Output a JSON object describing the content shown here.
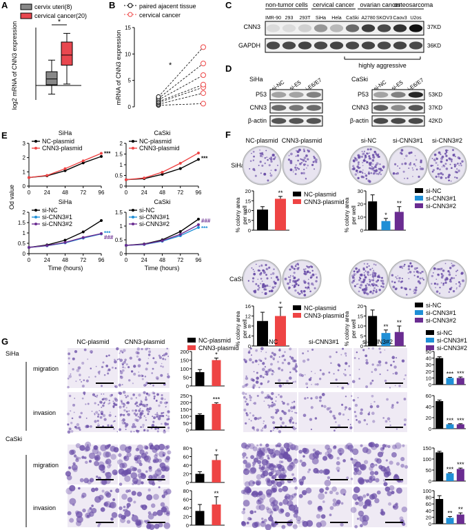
{
  "panels": {
    "A": {
      "letter": "A",
      "ylabel": "log2 mRNA of CNN3 expression",
      "legend": [
        "cervix uteri(8)",
        "cervical cancer(20)"
      ],
      "significance": "*",
      "colors": [
        "#888888",
        "#e8474f"
      ]
    },
    "B": {
      "letter": "B",
      "ylabel": "mRNA of CNN3 expression",
      "legend": [
        "paired ajacent tissue",
        "cervical cancer"
      ],
      "significance": "*",
      "yticks": [
        "0",
        "5",
        "10",
        "15"
      ]
    },
    "C": {
      "letter": "C",
      "groups": [
        "non-tumor cells",
        "cervical cancer",
        "ovarian cancer",
        "osteosarcoma"
      ],
      "lanes": [
        "IMR-90",
        "293",
        "293T",
        "SiHa",
        "Hela",
        "CaSki",
        "A2780",
        "SKOV3",
        "Caov3",
        "U2os"
      ],
      "rows": [
        "CNN3",
        "GAPDH"
      ],
      "sizes": [
        "37KD",
        "36KD"
      ],
      "note": "highly aggressive"
    },
    "D": {
      "letter": "D",
      "cells": [
        "SiHa",
        "CaSki"
      ],
      "lanes": [
        "si-NC",
        "si-E5",
        "si-E6/E7"
      ],
      "rows": [
        "P53",
        "CNN3",
        "β-actin"
      ],
      "sizes": [
        "53KD",
        "37KD",
        "42KD"
      ]
    },
    "E": {
      "letter": "E",
      "ylabel": "Od value",
      "xlabel": "Time (hours)",
      "titles": [
        "SiHa",
        "CaSki",
        "SiHa",
        "CaSki"
      ],
      "xticks": [
        "0",
        "24",
        "48",
        "72",
        "96"
      ],
      "top_legend": [
        "NC-plasmid",
        "CNN3-plasmid"
      ],
      "bottom_legend": [
        "si-NC",
        "si-CNN3#1",
        "si-CNN3#2"
      ],
      "sig_top": "***",
      "sig_bottom_a": "***",
      "sig_bottom_b": "###"
    },
    "F": {
      "letter": "F",
      "titles_left": [
        "NC-plasmid",
        "CNN3-plasmid"
      ],
      "titles_right": [
        "si-NC",
        "si-CNN3#1",
        "si-CNN3#2"
      ],
      "cells": [
        "SiHa",
        "CaSki"
      ],
      "ylabel": "% colony area per well",
      "legend_left": [
        "NC-plasmid",
        "CNN3-plasmid"
      ],
      "legend_right": [
        "si-NC",
        "si-CNN3#1",
        "si-CNN3#2"
      ]
    },
    "G": {
      "letter": "G",
      "cells": [
        "SiHa",
        "CaSki"
      ],
      "assays": [
        "migration",
        "invasion"
      ],
      "titles_left": [
        "NC-plasmid",
        "CNN3-plasmid"
      ],
      "titles_right": [
        "si-NC",
        "si-CNN3#1",
        "si-CNN3#2"
      ],
      "legend_left": [
        "NC-plasmid",
        "CNN3-plasmid"
      ],
      "legend_right": [
        "si-NC",
        "si-CNN3#1",
        "si-CNN3#2"
      ]
    }
  },
  "colors": {
    "black": "#000000",
    "red": "#ee4444",
    "blue": "#1f8fd6",
    "purple": "#6a2c91",
    "grey": "#888888",
    "stain": "#6b4fa8"
  },
  "chart_data": [
    {
      "id": "A",
      "type": "box",
      "categories": [
        "cervix uteri(8)",
        "cervical cancer(20)"
      ],
      "boxes": [
        {
          "min": -0.6,
          "q1": 0.05,
          "median": 0.45,
          "q3": 0.95,
          "max": 1.75
        },
        {
          "min": 0.1,
          "q1": 1.4,
          "median": 2.1,
          "q3": 3.0,
          "max": 3.6
        }
      ],
      "ylim": [
        -1,
        4
      ]
    },
    {
      "id": "B",
      "type": "paired-scatter",
      "series": [
        {
          "name": "paired ajacent tissue",
          "values": [
            0.3,
            0.5,
            0.8,
            1.0,
            1.3,
            1.6,
            1.9
          ]
        },
        {
          "name": "cervical cancer",
          "values": [
            0.6,
            2.6,
            3.7,
            4.2,
            6.0,
            8.2,
            11.3
          ]
        }
      ],
      "ylim": [
        0,
        15
      ]
    },
    {
      "id": "E-SiHa-top",
      "type": "line",
      "x": [
        0,
        24,
        48,
        72,
        96
      ],
      "ylim": [
        0,
        3
      ],
      "series": [
        {
          "name": "NC-plasmid",
          "values": [
            0.6,
            0.72,
            1.08,
            1.63,
            2.08
          ]
        },
        {
          "name": "CNN3-plasmid",
          "values": [
            0.6,
            0.75,
            1.22,
            1.77,
            2.3
          ]
        }
      ]
    },
    {
      "id": "E-CaSki-top",
      "type": "line",
      "x": [
        0,
        24,
        48,
        72,
        96
      ],
      "ylim": [
        0,
        2
      ],
      "series": [
        {
          "name": "NC-plasmid",
          "values": [
            0.3,
            0.35,
            0.55,
            0.82,
            1.25
          ]
        },
        {
          "name": "CNN3-plasmid",
          "values": [
            0.3,
            0.38,
            0.65,
            1.07,
            1.55
          ]
        }
      ]
    },
    {
      "id": "E-SiHa-bottom",
      "type": "line",
      "x": [
        0,
        24,
        48,
        72,
        96
      ],
      "ylim": [
        0,
        2
      ],
      "series": [
        {
          "name": "si-NC",
          "values": [
            0.3,
            0.42,
            0.65,
            1.05,
            1.6
          ]
        },
        {
          "name": "si-CNN3#1",
          "values": [
            0.3,
            0.38,
            0.52,
            0.75,
            0.95
          ]
        },
        {
          "name": "si-CNN3#2",
          "values": [
            0.3,
            0.39,
            0.54,
            0.78,
            0.97
          ]
        }
      ]
    },
    {
      "id": "E-CaSki-bottom",
      "type": "line",
      "x": [
        0,
        24,
        48,
        72,
        96
      ],
      "ylim": [
        0,
        1.5
      ],
      "series": [
        {
          "name": "si-NC",
          "values": [
            0.3,
            0.35,
            0.5,
            0.8,
            1.25
          ]
        },
        {
          "name": "si-CNN3#1",
          "values": [
            0.3,
            0.33,
            0.45,
            0.65,
            0.95
          ]
        },
        {
          "name": "si-CNN3#2",
          "values": [
            0.3,
            0.34,
            0.47,
            0.7,
            1.05
          ]
        }
      ]
    },
    {
      "id": "F-SiHa-L",
      "type": "bar",
      "categories": [
        "NC-plasmid",
        "CNN3-plasmid"
      ],
      "values": [
        10.5,
        16
      ],
      "errors": [
        1.5,
        1.2
      ],
      "sig": [
        "",
        "**"
      ],
      "ylim": [
        0,
        20
      ]
    },
    {
      "id": "F-SiHa-R",
      "type": "bar",
      "categories": [
        "si-NC",
        "si-CNN3#1",
        "si-CNN3#2"
      ],
      "values": [
        22,
        7,
        14
      ],
      "errors": [
        5,
        2,
        4
      ],
      "sig": [
        "",
        "*",
        "**"
      ],
      "ylim": [
        0,
        30
      ]
    },
    {
      "id": "F-CaSki-L",
      "type": "bar",
      "categories": [
        "NC-plasmid",
        "CNN3-plasmid"
      ],
      "values": [
        10,
        12
      ],
      "errors": [
        3.5,
        3.5
      ],
      "sig": [
        "",
        "*"
      ],
      "ylim": [
        0,
        16
      ]
    },
    {
      "id": "F-CaSki-R",
      "type": "bar",
      "categories": [
        "si-NC",
        "si-CNN3#1",
        "si-CNN3#2"
      ],
      "values": [
        15,
        6.5,
        7
      ],
      "errors": [
        3,
        1.5,
        3
      ],
      "sig": [
        "",
        "**",
        "**"
      ],
      "ylim": [
        0,
        20
      ]
    },
    {
      "id": "G-SiHa-mig-L",
      "type": "bar",
      "categories": [
        "NC-plasmid",
        "CNN3-plasmid"
      ],
      "values": [
        80,
        150
      ],
      "errors": [
        15,
        12
      ],
      "sig": [
        "",
        "*"
      ],
      "ylim": [
        0,
        200
      ]
    },
    {
      "id": "G-SiHa-inv-L",
      "type": "bar",
      "categories": [
        "NC-plasmid",
        "CNN3-plasmid"
      ],
      "values": [
        110,
        190
      ],
      "errors": [
        8,
        8
      ],
      "sig": [
        "",
        "***"
      ],
      "ylim": [
        0,
        250
      ]
    },
    {
      "id": "G-CaSki-mig-L",
      "type": "bar",
      "categories": [
        "NC-plasmid",
        "CNN3-plasmid"
      ],
      "values": [
        20,
        52
      ],
      "errors": [
        5,
        12
      ],
      "sig": [
        "",
        "*"
      ],
      "ylim": [
        0,
        80
      ]
    },
    {
      "id": "G-CaSki-inv-L",
      "type": "bar",
      "categories": [
        "NC-plasmid",
        "CNN3-plasmid"
      ],
      "values": [
        33,
        48
      ],
      "errors": [
        15,
        18
      ],
      "sig": [
        "",
        "**"
      ],
      "ylim": [
        0,
        80
      ]
    },
    {
      "id": "G-SiHa-mig-R",
      "type": "bar",
      "categories": [
        "si-NC",
        "si-CNN3#1",
        "si-CNN3#2"
      ],
      "values": [
        40,
        10,
        10
      ],
      "errors": [
        2,
        1,
        1.5
      ],
      "sig": [
        "",
        "***",
        "***"
      ],
      "ylim": [
        0,
        50
      ]
    },
    {
      "id": "G-SiHa-inv-R",
      "type": "bar",
      "categories": [
        "si-NC",
        "si-CNN3#1",
        "si-CNN3#2"
      ],
      "values": [
        50,
        8,
        8
      ],
      "errors": [
        2,
        1,
        1
      ],
      "sig": [
        "",
        "***",
        "***"
      ],
      "ylim": [
        0,
        60
      ]
    },
    {
      "id": "G-CaSki-mig-R",
      "type": "bar",
      "categories": [
        "si-NC",
        "si-CNN3#1",
        "si-CNN3#2"
      ],
      "values": [
        130,
        35,
        55
      ],
      "errors": [
        5,
        3,
        4
      ],
      "sig": [
        "",
        "***",
        "***"
      ],
      "ylim": [
        0,
        150
      ]
    },
    {
      "id": "G-CaSki-inv-R",
      "type": "bar",
      "categories": [
        "si-NC",
        "si-CNN3#1",
        "si-CNN3#2"
      ],
      "values": [
        75,
        18,
        28
      ],
      "errors": [
        10,
        4,
        5
      ],
      "sig": [
        "",
        "**",
        "**"
      ],
      "ylim": [
        0,
        100
      ]
    }
  ]
}
